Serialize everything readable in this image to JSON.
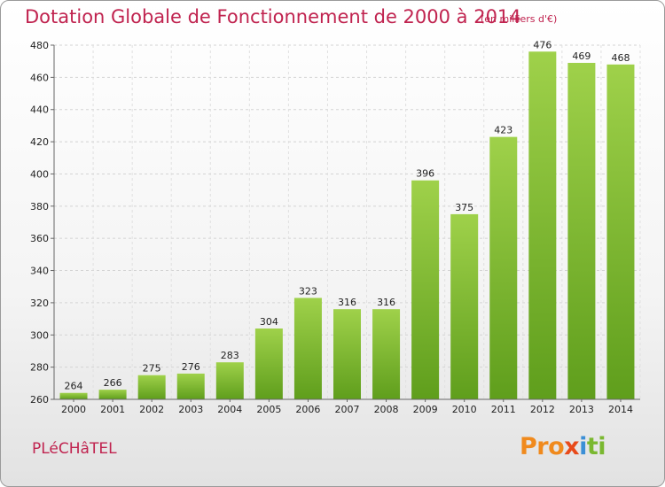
{
  "chart_data": {
    "type": "bar",
    "title": "Dotation Globale de Fonctionnement de 2000 à 2014",
    "subtitle": "(en milliers d'€)",
    "categories": [
      "2000",
      "2001",
      "2002",
      "2003",
      "2004",
      "2005",
      "2006",
      "2007",
      "2008",
      "2009",
      "2010",
      "2011",
      "2012",
      "2013",
      "2014"
    ],
    "values": [
      264,
      266,
      275,
      276,
      283,
      304,
      323,
      316,
      316,
      396,
      375,
      423,
      476,
      469,
      468
    ],
    "ylim": [
      260,
      480
    ],
    "yticks": [
      260,
      280,
      300,
      320,
      340,
      360,
      380,
      400,
      420,
      440,
      460,
      480
    ],
    "grid": true,
    "bar_color": "#7cbd2f"
  },
  "footer": {
    "commune": "PLéCHâTEL",
    "logo_parts": [
      "Pro",
      "x",
      "i",
      "ti"
    ]
  }
}
